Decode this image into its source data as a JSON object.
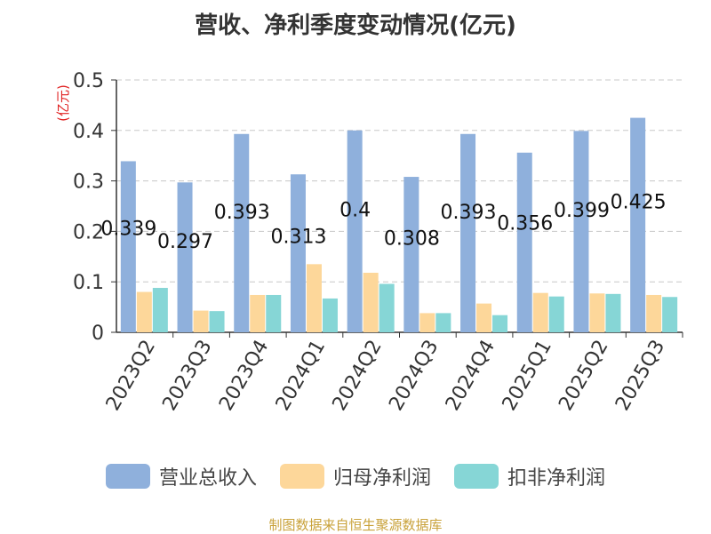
{
  "title": "营收、净利季度变动情况(亿元)",
  "source": "制图数据来自恒生聚源数据库",
  "colors": {
    "revenue": "#8fb0dc",
    "net_profit": "#fdd79a",
    "deducted_profit": "#86d6d6"
  },
  "chart_data": {
    "type": "bar",
    "title": "营收、净利季度变动情况(亿元)",
    "ylabel": "(亿元)",
    "ylim": [
      0,
      0.5
    ],
    "yticks": [
      "0",
      "0.1",
      "0.2",
      "0.3",
      "0.4",
      "0.5"
    ],
    "grid": true,
    "legend_position": "bottom",
    "categories": [
      "2023Q2",
      "2023Q3",
      "2023Q4",
      "2024Q1",
      "2024Q2",
      "2024Q3",
      "2024Q4",
      "2025Q1",
      "2025Q2",
      "2025Q3"
    ],
    "series": [
      {
        "name": "营业总收入",
        "values": [
          0.339,
          0.297,
          0.393,
          0.313,
          0.4,
          0.308,
          0.393,
          0.356,
          0.399,
          0.425
        ],
        "labels": [
          "0.339",
          "0.297",
          "0.393",
          "0.313",
          "0.4",
          "0.308",
          "0.393",
          "0.356",
          "0.399",
          "0.425"
        ]
      },
      {
        "name": "归母净利润",
        "values": [
          0.08,
          0.043,
          0.074,
          0.135,
          0.118,
          0.038,
          0.057,
          0.078,
          0.077,
          0.074
        ]
      },
      {
        "name": "扣非净利润",
        "values": [
          0.088,
          0.042,
          0.074,
          0.067,
          0.096,
          0.038,
          0.034,
          0.071,
          0.076,
          0.07
        ]
      }
    ]
  }
}
